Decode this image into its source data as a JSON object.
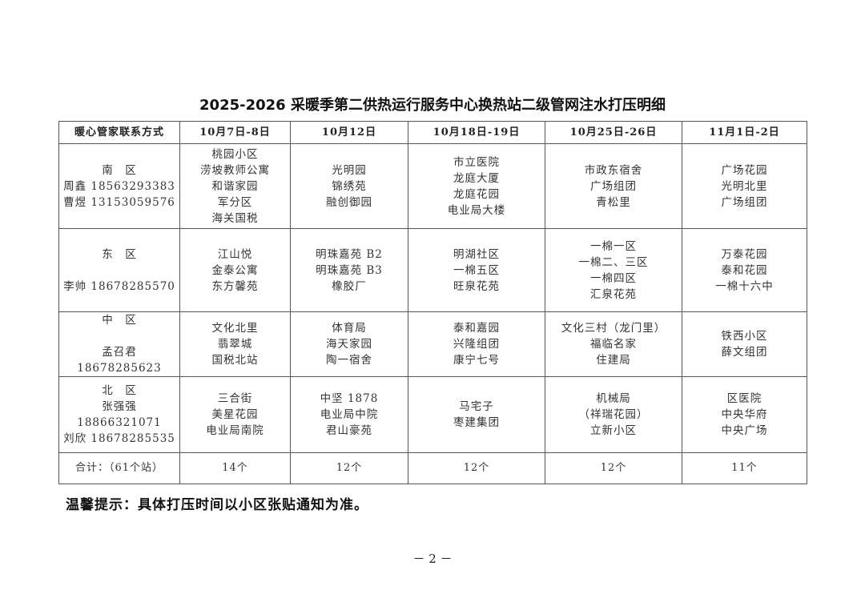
{
  "title": "2025-2026 采暖季第二供热运行服务中心换热站二级管网注水打压明细",
  "table": {
    "headers": [
      "暖心管家联系方式",
      "10月7日-8日",
      "10月12日",
      "10月18日-19日",
      "10月25日-26日",
      "11月1日-2日"
    ],
    "rows": [
      {
        "contact": [
          "南　区",
          "周鑫 18563293383",
          "曹煜 13153059576"
        ],
        "cells": [
          [
            "桃园小区",
            "涝坡教师公寓",
            "和谐家园",
            "军分区",
            "海关国税"
          ],
          [
            "光明园",
            "锦绣苑",
            "融创御园"
          ],
          [
            "市立医院",
            "龙庭大厦",
            "龙庭花园",
            "电业局大楼"
          ],
          [
            "市政东宿舍",
            "广场组团",
            "青松里"
          ],
          [
            "广场花园",
            "光明北里",
            "广场组团"
          ]
        ]
      },
      {
        "contact": [
          "东　区",
          "",
          "李帅 18678285570"
        ],
        "cells": [
          [
            "江山悦",
            "金泰公寓",
            "东方馨苑"
          ],
          [
            "明珠嘉苑 B2",
            "明珠嘉苑 B3",
            "橡胶厂"
          ],
          [
            "明湖社区",
            "一棉五区",
            "旺泉花苑"
          ],
          [
            "一棉一区",
            "一棉二、三区",
            "一棉四区",
            "汇泉花苑"
          ],
          [
            "万泰花园",
            "泰和花园",
            "一棉十六中"
          ]
        ]
      },
      {
        "contact": [
          "中　区",
          "",
          "孟召君 18678285623"
        ],
        "cells": [
          [
            "文化北里",
            "翡翠城",
            "国税北站"
          ],
          [
            "体育局",
            "海天家园",
            "陶一宿舍"
          ],
          [
            "泰和嘉园",
            "兴隆组团",
            "康宁七号"
          ],
          [
            "文化三村（龙门里）",
            "福临名家",
            "住建局"
          ],
          [
            "铁西小区",
            "薛文组团"
          ]
        ]
      },
      {
        "contact": [
          "北　区",
          "张强强 18866321071",
          "刘欣 18678285535"
        ],
        "cells": [
          [
            "三合街",
            "美星花园",
            "电业局南院"
          ],
          [
            "中坚 1878",
            "电业局中院",
            "君山豪苑"
          ],
          [
            "马宅子",
            "枣建集团"
          ],
          [
            "机械局",
            "（祥瑞花园）",
            "立新小区"
          ],
          [
            "区医院",
            "中央华府",
            "中央广场"
          ]
        ]
      }
    ],
    "total": [
      "合计：（61个站）",
      "14个",
      "12个",
      "12个",
      "12个",
      "11个"
    ]
  },
  "tip": "温馨提示：具体打压时间以小区张贴通知为准。",
  "page_number": "－ 2 －"
}
